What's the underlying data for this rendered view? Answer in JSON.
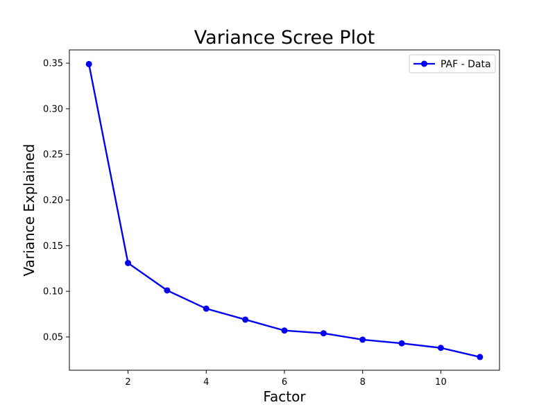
{
  "chart_data": {
    "type": "line",
    "title": "Variance Scree Plot",
    "xlabel": "Factor",
    "ylabel": "Variance Explained",
    "xlim": [
      0.5,
      11.5
    ],
    "ylim": [
      0.0135,
      0.3645
    ],
    "x_ticks": [
      2,
      4,
      6,
      8,
      10
    ],
    "y_ticks": [
      0.05,
      0.1,
      0.15,
      0.2,
      0.25,
      0.3,
      0.35
    ],
    "x_tick_labels": [
      "2",
      "4",
      "6",
      "8",
      "10"
    ],
    "y_tick_labels": [
      "0.05",
      "0.10",
      "0.15",
      "0.20",
      "0.25",
      "0.30",
      "0.35"
    ],
    "grid": false,
    "legend_position": "top-right",
    "series": [
      {
        "name": "PAF - Data",
        "color": "#0000ee",
        "marker": "circle",
        "x": [
          1,
          2,
          3,
          4,
          5,
          6,
          7,
          8,
          9,
          10,
          11
        ],
        "values": [
          0.349,
          0.131,
          0.101,
          0.081,
          0.069,
          0.057,
          0.054,
          0.047,
          0.043,
          0.038,
          0.028
        ]
      }
    ]
  }
}
